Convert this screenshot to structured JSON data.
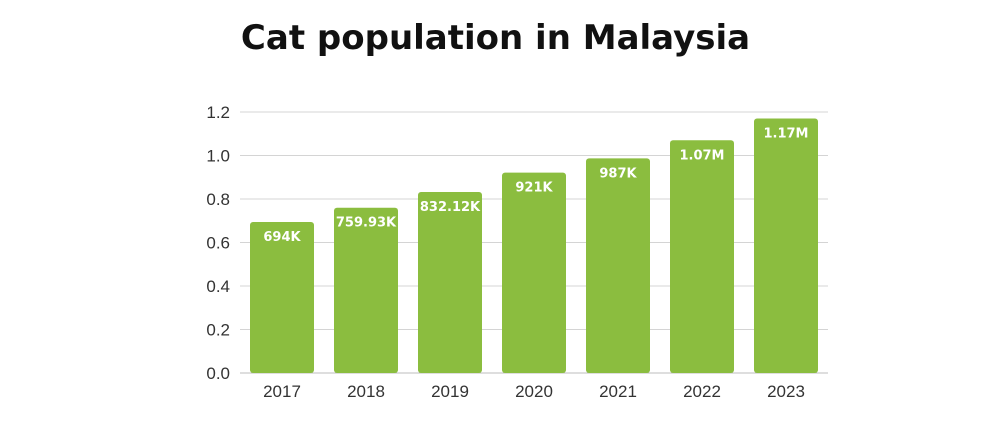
{
  "chart_data": {
    "type": "bar",
    "title": "Cat population in Malaysia",
    "xlabel": "",
    "ylabel": "",
    "categories": [
      "2017",
      "2018",
      "2019",
      "2020",
      "2021",
      "2022",
      "2023"
    ],
    "values": [
      0.694,
      0.75993,
      0.83212,
      0.921,
      0.987,
      1.07,
      1.17
    ],
    "data_labels": [
      "694K",
      "759.93K",
      "832.12K",
      "921K",
      "987K",
      "1.07M",
      "1.17M"
    ],
    "ylim": [
      0,
      1.2
    ],
    "yticks": [
      "0.0",
      "0.2",
      "0.4",
      "0.6",
      "0.8",
      "1.0",
      "1.2"
    ],
    "grid": true,
    "legend": "none",
    "bar_color": "#8bbd3f",
    "label_color": "#ffffff"
  }
}
